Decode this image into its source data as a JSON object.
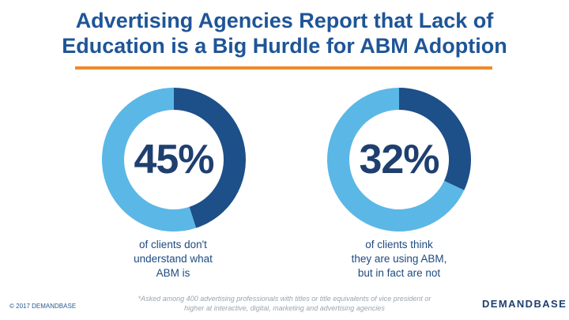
{
  "title": {
    "line1": "Advertising Agencies Report that Lack of",
    "line2": "Education is a Big Hurdle for ABM Adoption"
  },
  "colors": {
    "title": "#1f5597",
    "rule": "#ef8a2d",
    "primary": "#1d4f89",
    "secondary": "#5bb7e6"
  },
  "chart_data": [
    {
      "type": "pie",
      "variant": "donut",
      "label": "45%",
      "values": [
        45,
        55
      ],
      "caption": [
        "of clients don't",
        "understand what",
        "ABM is"
      ]
    },
    {
      "type": "pie",
      "variant": "donut",
      "label": "32%",
      "values": [
        32,
        68
      ],
      "caption": [
        "of clients think",
        "they are using ABM,",
        "but in fact are not"
      ]
    }
  ],
  "footer": {
    "copyright": "© 2017 DEMANDBASE",
    "footnote_line1": "*Asked among 400 advertising professionals with titles or title equivalents of vice president or",
    "footnote_line2": "higher at interactive, digital, marketing and advertising agencies",
    "logo": "DEMANDBASE"
  }
}
